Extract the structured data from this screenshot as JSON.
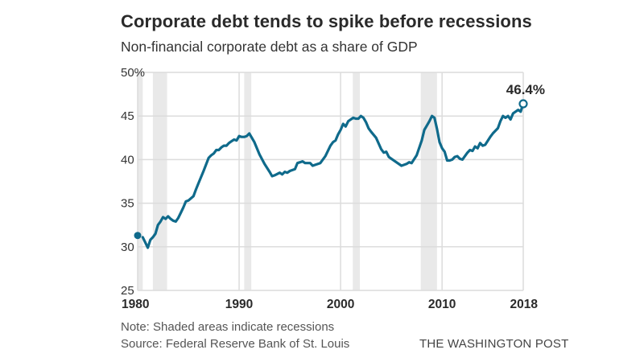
{
  "chart_data": {
    "type": "line",
    "title": "Corporate debt tends to spike before recessions",
    "subtitle": "Non-financial corporate debt as a share of GDP",
    "xlabel": "",
    "ylabel": "",
    "xlim": [
      1980,
      2018
    ],
    "ylim": [
      25,
      50
    ],
    "grid": true,
    "y_ticks": [
      {
        "value": 50,
        "label": "50%"
      },
      {
        "value": 45,
        "label": "45"
      },
      {
        "value": 40,
        "label": "40"
      },
      {
        "value": 35,
        "label": "35"
      },
      {
        "value": 30,
        "label": "30"
      },
      {
        "value": 25,
        "label": "25"
      }
    ],
    "x_ticks": [
      {
        "value": 1980,
        "label": "1980"
      },
      {
        "value": 1990,
        "label": "1990"
      },
      {
        "value": 2000,
        "label": "2000"
      },
      {
        "value": 2010,
        "label": "2010"
      },
      {
        "value": 2018,
        "label": "2018"
      }
    ],
    "recessions": [
      {
        "start": 1980.0,
        "end": 1980.5
      },
      {
        "start": 1981.5,
        "end": 1982.9
      },
      {
        "start": 1990.5,
        "end": 1991.2
      },
      {
        "start": 2001.2,
        "end": 2001.9
      },
      {
        "start": 2007.9,
        "end": 2009.5
      }
    ],
    "start_point": {
      "x": 1980.0,
      "y": 31.3
    },
    "end_point": {
      "x": 2018.0,
      "y": 46.4,
      "label": "46.4%"
    },
    "series": [
      {
        "name": "Non-financial corporate debt (% of GDP)",
        "color": "#0f6a8b",
        "x": [
          1980.5,
          1980.75,
          1981.0,
          1981.25,
          1981.5,
          1981.75,
          1982.0,
          1982.25,
          1982.5,
          1982.75,
          1983.0,
          1983.25,
          1983.5,
          1983.75,
          1984.0,
          1984.25,
          1984.5,
          1984.75,
          1985.0,
          1985.5,
          1985.75,
          1986.0,
          1986.5,
          1987.0,
          1987.25,
          1987.5,
          1987.75,
          1988.0,
          1988.25,
          1988.5,
          1988.75,
          1989.0,
          1989.25,
          1989.5,
          1989.75,
          1990.0,
          1990.25,
          1990.5,
          1990.75,
          1991.0,
          1991.5,
          1992.0,
          1992.5,
          1993.0,
          1993.25,
          1993.5,
          1994.0,
          1994.25,
          1994.5,
          1994.75,
          1995.0,
          1995.5,
          1995.75,
          1996.0,
          1996.25,
          1996.5,
          1997.0,
          1997.25,
          1997.5,
          1998.0,
          1998.5,
          1999.0,
          1999.25,
          1999.5,
          1999.75,
          2000.0,
          2000.25,
          2000.5,
          2000.75,
          2001.0,
          2001.25,
          2001.5,
          2001.75,
          2002.0,
          2002.25,
          2002.5,
          2002.75,
          2003.0,
          2003.5,
          2004.0,
          2004.25,
          2004.5,
          2004.75,
          2005.0,
          2005.5,
          2006.0,
          2006.25,
          2006.5,
          2006.75,
          2007.0,
          2007.5,
          2008.0,
          2008.25,
          2008.5,
          2008.75,
          2009.0,
          2009.25,
          2009.5,
          2009.75,
          2010.0,
          2010.25,
          2010.5,
          2010.75,
          2011.0,
          2011.25,
          2011.5,
          2011.75,
          2012.0,
          2012.5,
          2012.75,
          2013.0,
          2013.25,
          2013.5,
          2013.75,
          2014.0,
          2014.25,
          2014.75,
          2015.0,
          2015.5,
          2015.75,
          2016.0,
          2016.25,
          2016.5,
          2016.75,
          2017.0,
          2017.5,
          2017.75,
          2018.0
        ],
        "values": [
          31.1,
          30.5,
          29.9,
          30.8,
          31.1,
          31.5,
          32.5,
          32.9,
          33.4,
          33.2,
          33.5,
          33.2,
          33.0,
          32.9,
          33.3,
          33.9,
          34.5,
          35.2,
          35.3,
          35.8,
          36.6,
          37.3,
          38.7,
          40.2,
          40.5,
          40.7,
          41.1,
          41.1,
          41.4,
          41.6,
          41.6,
          41.9,
          42.1,
          42.3,
          42.2,
          42.7,
          42.6,
          42.6,
          42.7,
          43.0,
          42.0,
          40.6,
          39.5,
          38.6,
          38.1,
          38.2,
          38.5,
          38.3,
          38.6,
          38.5,
          38.7,
          38.9,
          39.6,
          39.7,
          39.8,
          39.6,
          39.6,
          39.3,
          39.4,
          39.6,
          40.4,
          41.6,
          42.0,
          42.2,
          42.9,
          43.4,
          44.1,
          43.8,
          44.4,
          44.6,
          44.8,
          44.7,
          44.7,
          45.0,
          44.8,
          44.3,
          43.6,
          43.2,
          42.5,
          41.2,
          40.8,
          40.9,
          40.3,
          40.1,
          39.7,
          39.3,
          39.4,
          39.5,
          39.7,
          39.6,
          40.5,
          42.2,
          43.4,
          43.9,
          44.4,
          45.0,
          44.8,
          43.5,
          42.0,
          41.3,
          40.9,
          39.9,
          39.9,
          40.0,
          40.3,
          40.4,
          40.1,
          40.0,
          40.8,
          41.1,
          41.0,
          41.5,
          41.3,
          41.9,
          41.6,
          41.7,
          42.6,
          43.0,
          43.6,
          44.4,
          45.0,
          44.8,
          45.0,
          44.6,
          45.3,
          45.7,
          45.5,
          46.4
        ]
      }
    ]
  },
  "colors": {
    "line": "#0f6a8b",
    "recession_band": "#e9e9e9",
    "grid": "#dcdcdc",
    "text": "#333333"
  },
  "footer": {
    "note": "Note: Shaded areas indicate recessions",
    "source": "Source: Federal Reserve Bank of St. Louis",
    "credit": "THE WASHINGTON POST"
  }
}
